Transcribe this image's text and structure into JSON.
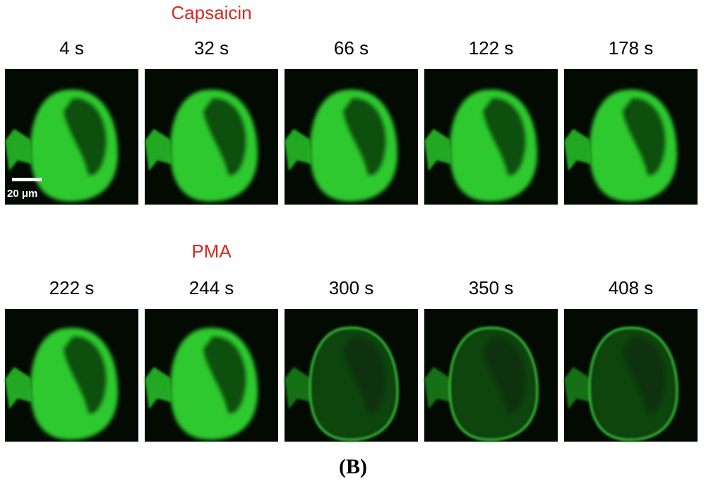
{
  "rows": [
    {
      "treatment": "Capsaicin",
      "frames": [
        "4 s",
        "32 s",
        "66 s",
        "122 s",
        "178 s"
      ]
    },
    {
      "treatment": "PMA",
      "frames": [
        "222 s",
        "244 s",
        "300 s",
        "350 s",
        "408 s"
      ]
    }
  ],
  "scale_bar": "20 μm",
  "panel_label": "(B)"
}
